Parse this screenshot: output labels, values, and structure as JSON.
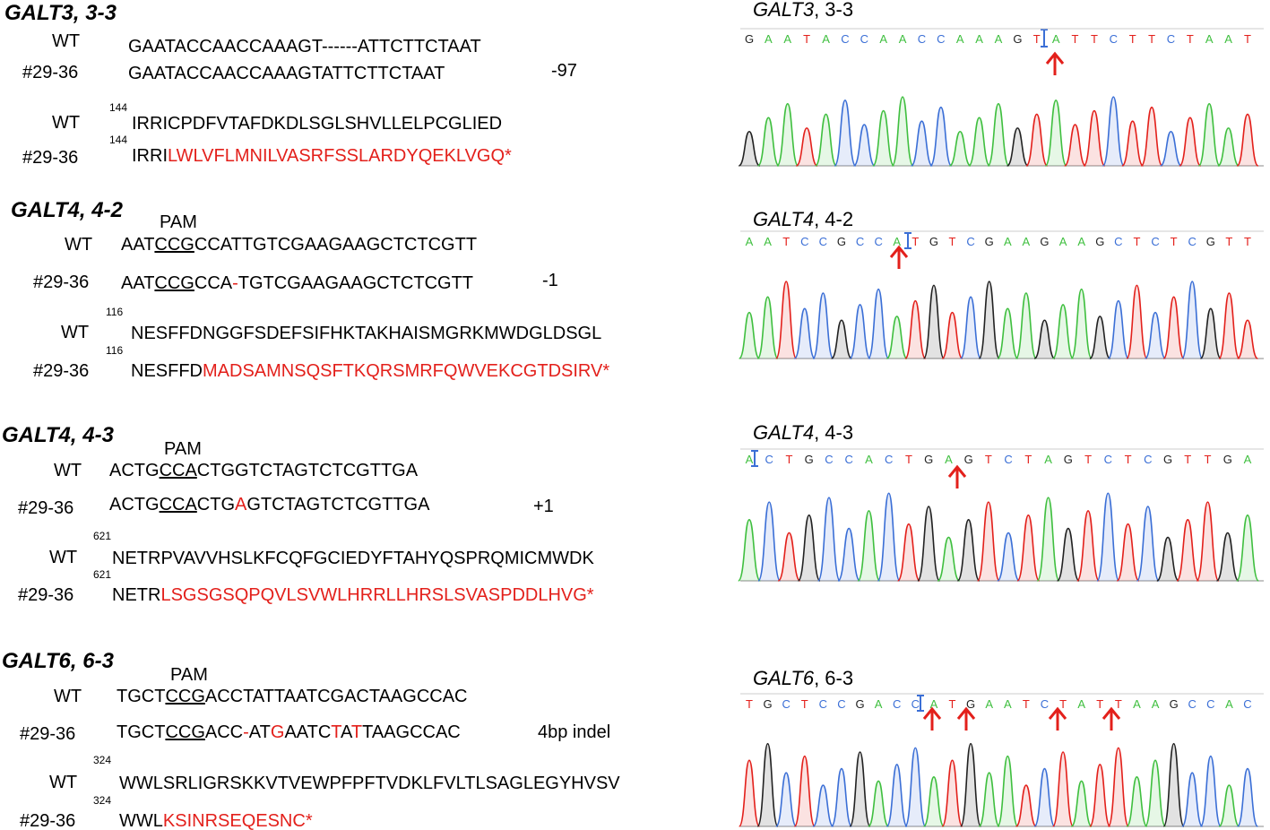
{
  "blocks": [
    {
      "title": [
        {
          "t": "GALT3",
          "s": "bolditalic"
        },
        {
          "t": ", 3-3",
          "s": "bold"
        }
      ],
      "rows": [
        {
          "label": "WT",
          "segments": [
            {
              "t": "GAATACCAACCAAAGT------ATTCTTCTAAT",
              "s": "plain"
            }
          ]
        },
        {
          "label": "#29-36",
          "segments": [
            {
              "t": "GAATACCAACCAAAGTATTCTTCTAAT",
              "s": "plain"
            }
          ],
          "note": "-97"
        },
        {
          "label": "WT",
          "start": 144,
          "segments": [
            {
              "t": "IRRICPDFVTAFDKDLSGLSHVLLELPCGLIED",
              "s": "plain"
            }
          ]
        },
        {
          "label": "#29-36",
          "start": 144,
          "segments": [
            {
              "t": "IRRI",
              "s": "plain"
            },
            {
              "t": "LWLVFLMNILVASRFSSLARDYQEKLVGQ*",
              "s": "red"
            }
          ]
        }
      ]
    },
    {
      "title": [
        {
          "t": "GALT4",
          "s": "bolditalic"
        },
        {
          "t": ", 4-2",
          "s": "bold"
        }
      ],
      "pam": "PAM",
      "rows": [
        {
          "label": "WT",
          "segments": [
            {
              "t": "AAT",
              "s": "plain"
            },
            {
              "t": "CCG",
              "s": "underline"
            },
            {
              "t": "CCATTGTCGAAGAAGCTCTCGTT",
              "s": "plain"
            }
          ]
        },
        {
          "label": "#29-36",
          "segments": [
            {
              "t": "AAT",
              "s": "plain"
            },
            {
              "t": "CCG",
              "s": "underline"
            },
            {
              "t": "CCA",
              "s": "plain"
            },
            {
              "t": "-",
              "s": "red"
            },
            {
              "t": "TGTCGAAGAAGCTCTCGTT",
              "s": "plain"
            }
          ],
          "note": "-1"
        },
        {
          "label": "WT",
          "start": 116,
          "segments": [
            {
              "t": "NESFFDNGGFSDEFSIFHKTAKHAISMGRKMWDGLDSGL",
              "s": "plain"
            }
          ]
        },
        {
          "label": "#29-36",
          "start": 116,
          "segments": [
            {
              "t": "NESFFD",
              "s": "plain"
            },
            {
              "t": "MADSAMNSQSFTKQRSMRFQWVEKCGTDSIRV*",
              "s": "red"
            }
          ]
        }
      ]
    },
    {
      "title": [
        {
          "t": "GALT4",
          "s": "bolditalic"
        },
        {
          "t": ", 4-3",
          "s": "bold"
        }
      ],
      "pam": "PAM",
      "rows": [
        {
          "label": "WT",
          "segments": [
            {
              "t": "ACTG",
              "s": "plain"
            },
            {
              "t": "CCA",
              "s": "underline"
            },
            {
              "t": "CTGGTCTAGTCTCGTTGA",
              "s": "plain"
            }
          ]
        },
        {
          "label": "#29-36",
          "segments": [
            {
              "t": "ACTG",
              "s": "plain"
            },
            {
              "t": "CCA",
              "s": "underline"
            },
            {
              "t": "CTG",
              "s": "plain"
            },
            {
              "t": "A",
              "s": "red"
            },
            {
              "t": "GTCTAGTCTCGTTGA",
              "s": "plain"
            }
          ],
          "note": "+1"
        },
        {
          "label": "WT",
          "start": 621,
          "segments": [
            {
              "t": "NETRPVAVVHSLKFCQFGCIEDYFTAHYQSPRQMICMWDK",
              "s": "plain"
            }
          ]
        },
        {
          "label": "#29-36",
          "start": 621,
          "segments": [
            {
              "t": "NETR",
              "s": "plain"
            },
            {
              "t": "LSGSGSQPQVLSVWLHRRLLHRSLSVASPDDLHVG*",
              "s": "red"
            }
          ]
        }
      ]
    },
    {
      "title": [
        {
          "t": "GALT6",
          "s": "bolditalic"
        },
        {
          "t": ", 6-3",
          "s": "bold"
        }
      ],
      "pam": "PAM",
      "rows": [
        {
          "label": "WT",
          "segments": [
            {
              "t": "TGCT",
              "s": "plain"
            },
            {
              "t": "CCG",
              "s": "underline"
            },
            {
              "t": "ACCTATTAATCGACTAAGCCAC",
              "s": "plain"
            }
          ]
        },
        {
          "label": "#29-36",
          "segments": [
            {
              "t": "TGCT",
              "s": "plain"
            },
            {
              "t": "CCG",
              "s": "underline"
            },
            {
              "t": "ACC",
              "s": "plain"
            },
            {
              "t": "-",
              "s": "red"
            },
            {
              "t": "AT",
              "s": "plain"
            },
            {
              "t": "G",
              "s": "red"
            },
            {
              "t": "AATC",
              "s": "plain"
            },
            {
              "t": "T",
              "s": "red"
            },
            {
              "t": "A",
              "s": "plain"
            },
            {
              "t": "T",
              "s": "red"
            },
            {
              "t": "TAAGCCAC",
              "s": "plain"
            }
          ],
          "note": "4bp indel"
        },
        {
          "label": "WT",
          "start": 324,
          "segments": [
            {
              "t": "WWLSRLIGRSKKVTVEWPFPFTVDKLFVLTLSAGLEGYHVSV",
              "s": "plain"
            }
          ]
        },
        {
          "label": "#29-36",
          "start": 324,
          "segments": [
            {
              "t": "WWL",
              "s": "plain"
            },
            {
              "t": "KSINRSEQESNC*",
              "s": "red"
            }
          ]
        }
      ]
    }
  ],
  "chromatograms": [
    {
      "title": [
        {
          "t": "GALT3",
          "s": "italic"
        },
        {
          "t": ", 3-3",
          "s": "plain"
        }
      ],
      "bases": "GAATACCAACCAAAGTATTCTTCTAAT"
    },
    {
      "title": [
        {
          "t": "GALT4",
          "s": "italic"
        },
        {
          "t": ", 4-2",
          "s": "plain"
        }
      ],
      "bases": "AATCCGCCATGTCGAAGAAGCTCTCGTT"
    },
    {
      "title": [
        {
          "t": "GALT4",
          "s": "italic"
        },
        {
          "t": ", 4-3",
          "s": "plain"
        }
      ],
      "bases": "ACTGCCACTGAGTCTAGTCTCGTTGA"
    },
    {
      "title": [
        {
          "t": "GALT6",
          "s": "italic"
        },
        {
          "t": ", 6-3",
          "s": "plain"
        }
      ],
      "bases": "TGCTCCGACCATGAATCTATTAAGCCAC"
    }
  ]
}
